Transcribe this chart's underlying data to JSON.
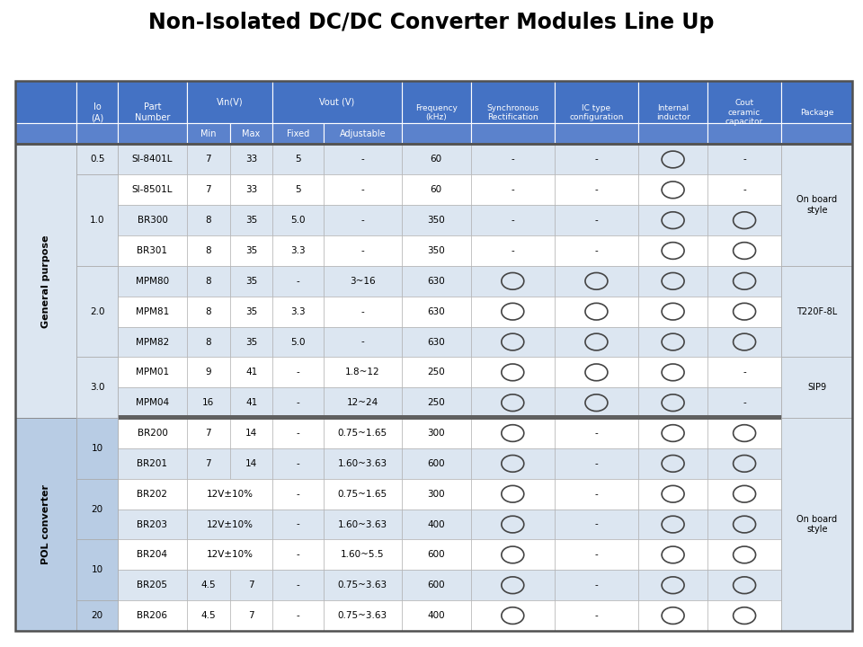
{
  "title": "Non-Isolated DC/DC Converter Modules Line Up",
  "bg_color": "#ffffff",
  "header_bg": "#4472c4",
  "header_bg2": "#7094d4",
  "header_text_color": "#ffffff",
  "cell_bg_light": "#dce6f1",
  "cell_bg_white": "#ffffff",
  "cell_bg_blue": "#b8cce4",
  "rows": [
    {
      "group": "General purpose",
      "io": "0.5",
      "part": "SI-8401L",
      "vin_min": "7",
      "vin_max": "33",
      "vout_fixed": "5",
      "vout_adj": "-",
      "freq": "60",
      "sync": "-",
      "ic": "-",
      "ind": "O",
      "cout": "-",
      "io_group": "0.5",
      "io_span": 1
    },
    {
      "group": "General purpose",
      "io": "1.0",
      "part": "SI-8501L",
      "vin_min": "7",
      "vin_max": "33",
      "vout_fixed": "5",
      "vout_adj": "-",
      "freq": "60",
      "sync": "-",
      "ic": "-",
      "ind": "O",
      "cout": "-",
      "io_group": "1.0",
      "io_span": 3
    },
    {
      "group": "General purpose",
      "io": "1.0",
      "part": "BR300",
      "vin_min": "8",
      "vin_max": "35",
      "vout_fixed": "5.0",
      "vout_adj": "-",
      "freq": "350",
      "sync": "-",
      "ic": "-",
      "ind": "O",
      "cout": "O",
      "io_group": null,
      "io_span": null
    },
    {
      "group": "General purpose",
      "io": "1.0",
      "part": "BR301",
      "vin_min": "8",
      "vin_max": "35",
      "vout_fixed": "3.3",
      "vout_adj": "-",
      "freq": "350",
      "sync": "-",
      "ic": "-",
      "ind": "O",
      "cout": "O",
      "io_group": null,
      "io_span": null
    },
    {
      "group": "General purpose",
      "io": "2.0",
      "part": "MPM80",
      "vin_min": "8",
      "vin_max": "35",
      "vout_fixed": "-",
      "vout_adj": "3~16",
      "freq": "630",
      "sync": "O",
      "ic": "O",
      "ind": "O",
      "cout": "O",
      "io_group": "2.0",
      "io_span": 3
    },
    {
      "group": "General purpose",
      "io": "2.0",
      "part": "MPM81",
      "vin_min": "8",
      "vin_max": "35",
      "vout_fixed": "3.3",
      "vout_adj": "-",
      "freq": "630",
      "sync": "O",
      "ic": "O",
      "ind": "O",
      "cout": "O",
      "io_group": null,
      "io_span": null
    },
    {
      "group": "General purpose",
      "io": "2.0",
      "part": "MPM82",
      "vin_min": "8",
      "vin_max": "35",
      "vout_fixed": "5.0",
      "vout_adj": "-",
      "freq": "630",
      "sync": "O",
      "ic": "O",
      "ind": "O",
      "cout": "O",
      "io_group": null,
      "io_span": null
    },
    {
      "group": "General purpose",
      "io": "3.0",
      "part": "MPM01",
      "vin_min": "9",
      "vin_max": "41",
      "vout_fixed": "-",
      "vout_adj": "1.8~12",
      "freq": "250",
      "sync": "O",
      "ic": "O",
      "ind": "O",
      "cout": "-",
      "io_group": "3.0",
      "io_span": 2
    },
    {
      "group": "General purpose",
      "io": "3.0",
      "part": "MPM04",
      "vin_min": "16",
      "vin_max": "41",
      "vout_fixed": "-",
      "vout_adj": "12~24",
      "freq": "250",
      "sync": "O",
      "ic": "O",
      "ind": "O",
      "cout": "-",
      "io_group": null,
      "io_span": null
    },
    {
      "group": "POL converter",
      "io": "10",
      "part": "BR200",
      "vin_min": "7",
      "vin_max": "14",
      "vout_fixed": "-",
      "vout_adj": "0.75~1.65",
      "freq": "300",
      "sync": "O",
      "ic": "-",
      "ind": "O",
      "cout": "O",
      "io_group": "10",
      "io_span": 2
    },
    {
      "group": "POL converter",
      "io": "10",
      "part": "BR201",
      "vin_min": "7",
      "vin_max": "14",
      "vout_fixed": "-",
      "vout_adj": "1.60~3.63",
      "freq": "600",
      "sync": "O",
      "ic": "-",
      "ind": "O",
      "cout": "O",
      "io_group": null,
      "io_span": null
    },
    {
      "group": "POL converter",
      "io": "20",
      "part": "BR202",
      "vin_min": "12V±10%",
      "vin_max": "",
      "vout_fixed": "-",
      "vout_adj": "0.75~1.65",
      "freq": "300",
      "sync": "O",
      "ic": "-",
      "ind": "O",
      "cout": "O",
      "io_group": "20",
      "io_span": 2
    },
    {
      "group": "POL converter",
      "io": "20",
      "part": "BR203",
      "vin_min": "12V±10%",
      "vin_max": "",
      "vout_fixed": "-",
      "vout_adj": "1.60~3.63",
      "freq": "400",
      "sync": "O",
      "ic": "-",
      "ind": "O",
      "cout": "O",
      "io_group": null,
      "io_span": null
    },
    {
      "group": "POL converter",
      "io": "10",
      "part": "BR204",
      "vin_min": "12V±10%",
      "vin_max": "",
      "vout_fixed": "-",
      "vout_adj": "1.60~5.5",
      "freq": "600",
      "sync": "O",
      "ic": "-",
      "ind": "O",
      "cout": "O",
      "io_group": "10",
      "io_span": 2
    },
    {
      "group": "POL converter",
      "io": "10",
      "part": "BR205",
      "vin_min": "4.5",
      "vin_max": "7",
      "vout_fixed": "-",
      "vout_adj": "0.75~3.63",
      "freq": "600",
      "sync": "O",
      "ic": "-",
      "ind": "O",
      "cout": "O",
      "io_group": null,
      "io_span": null
    },
    {
      "group": "POL converter",
      "io": "20",
      "part": "BR206",
      "vin_min": "4.5",
      "vin_max": "7",
      "vout_fixed": "-",
      "vout_adj": "0.75~3.63",
      "freq": "400",
      "sync": "O",
      "ic": "-",
      "ind": "O",
      "cout": "O",
      "io_group": "20",
      "io_span": 1
    }
  ],
  "pkg_groups": [
    {
      "start": 0,
      "end": 4,
      "text": "On board\nstyle"
    },
    {
      "start": 4,
      "end": 7,
      "text": "T220F-8L"
    },
    {
      "start": 7,
      "end": 9,
      "text": "SIP9"
    },
    {
      "start": 9,
      "end": 16,
      "text": "On board\nstyle"
    }
  ]
}
